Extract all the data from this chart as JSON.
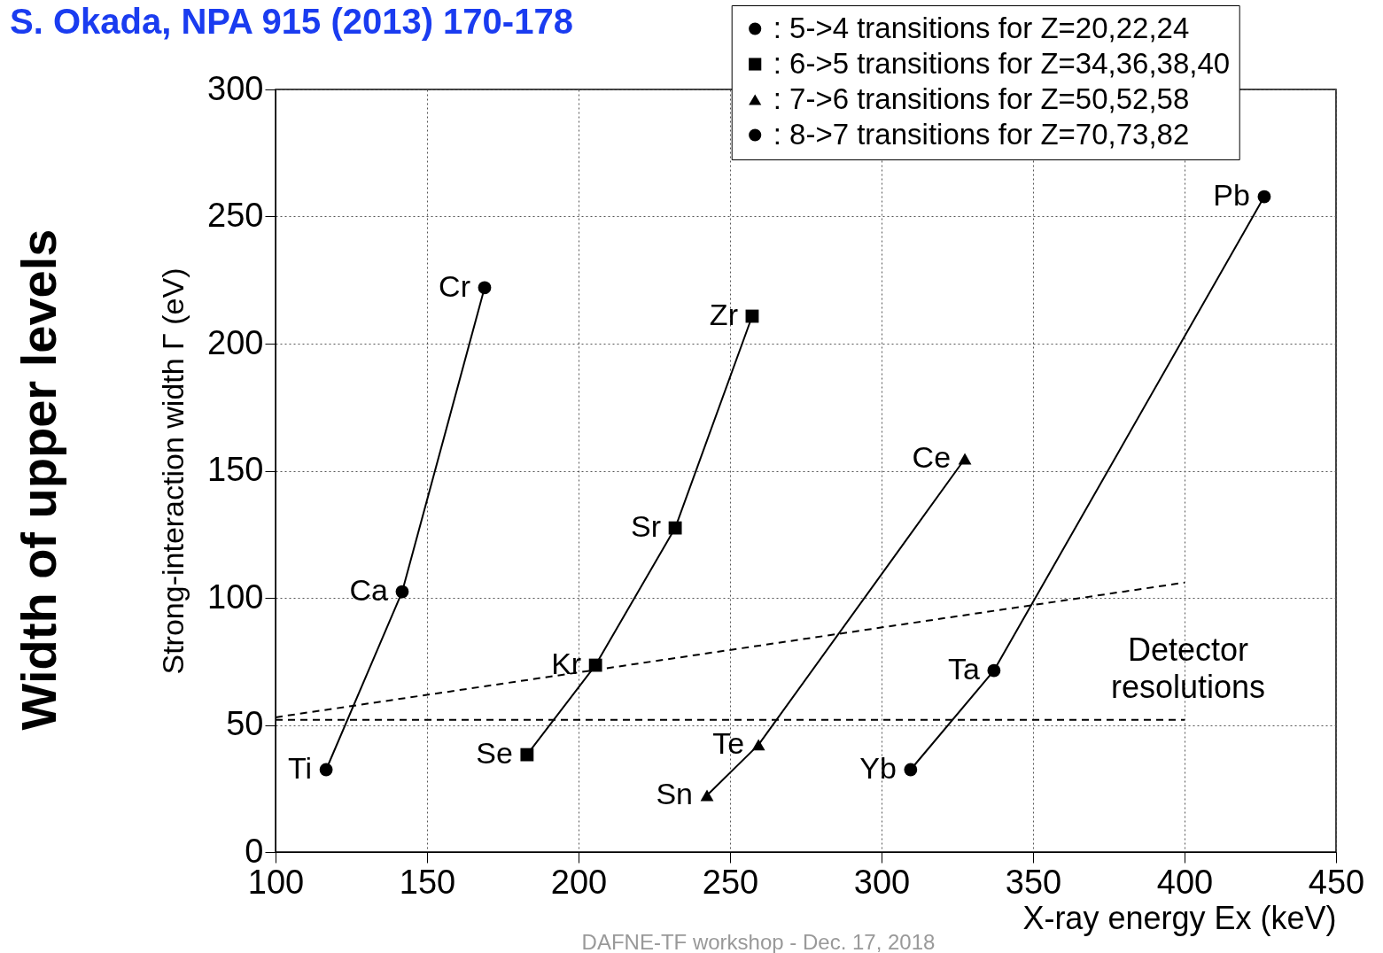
{
  "chart_data": {
    "type": "scatter",
    "title": "S. Okada, NPA 915 (2013) 170-178",
    "xlabel": "X-ray energy Ex (keV)",
    "ylabel": "Strong-interaction width Γ (eV)",
    "xlim": [
      100,
      450
    ],
    "ylim": [
      0,
      300
    ],
    "xticks": [
      100,
      150,
      200,
      250,
      300,
      350,
      400,
      450
    ],
    "yticks": [
      0,
      50,
      100,
      150,
      200,
      250,
      300
    ],
    "grid": true,
    "legend": "top right",
    "series": [
      {
        "name": ": 5->4 transitions for Z=20,22,24",
        "type": "line",
        "marker": "circle",
        "color": "#000000",
        "x": [
          116.7,
          141.8,
          169
        ],
        "values": [
          32.4,
          102.4,
          222
        ]
      },
      {
        "name": ": 6->5 transitions for Z=34,36,38,40",
        "type": "line",
        "marker": "square",
        "color": "#000000",
        "x": [
          183,
          205.6,
          231.9,
          257.3
        ],
        "values": [
          38.3,
          73.5,
          127.5,
          210.8
        ]
      },
      {
        "name": ": 7->6 transitions for Z=50,52,58",
        "type": "line",
        "marker": "triangle",
        "color": "#000000",
        "x": [
          242.4,
          259.4,
          327.5
        ],
        "values": [
          22.3,
          42.2,
          154.7
        ]
      },
      {
        "name": ": 8->7 transitions for Z=70,73,82",
        "type": "line",
        "marker": "circle",
        "color": "#000000",
        "x": [
          309.6,
          337.1,
          426.3
        ],
        "values": [
          32.4,
          71.4,
          257.8
        ]
      },
      {
        "type": "line",
        "marker": "none",
        "line_style": "dashed",
        "color": "#000000",
        "x": [
          100,
          400
        ],
        "values": [
          53,
          106
        ]
      },
      {
        "type": "line",
        "marker": "none",
        "line_style": "dashed",
        "color": "#000000",
        "x": [
          100,
          400
        ],
        "values": [
          52,
          52
        ]
      }
    ],
    "annotations": [
      "Width of upper levels",
      "DAFNE-TF workshop - Dec. 17, 2018",
      "Detector resolutions",
      {
        "text": "Ti",
        "x": 116.7,
        "y": 32.4
      },
      {
        "text": "Ca",
        "x": 141.8,
        "y": 102.4
      },
      {
        "text": "Cr",
        "x": 169,
        "y": 222
      },
      {
        "text": "Se",
        "x": 183,
        "y": 38.3
      },
      {
        "text": "Kr",
        "x": 205.6,
        "y": 73.5
      },
      {
        "text": "Sr",
        "x": 231.9,
        "y": 127.5
      },
      {
        "text": "Zr",
        "x": 257.3,
        "y": 210.8
      },
      {
        "text": "Sn",
        "x": 242.4,
        "y": 22.3
      },
      {
        "text": "Te",
        "x": 259.4,
        "y": 42.2
      },
      {
        "text": "Ce",
        "x": 327.5,
        "y": 154.7
      },
      {
        "text": "Yb",
        "x": 309.6,
        "y": 32.4
      },
      {
        "text": "Ta",
        "x": 337.1,
        "y": 71.4
      },
      {
        "text": "Pb",
        "x": 426.3,
        "y": 257.8
      }
    ]
  }
}
